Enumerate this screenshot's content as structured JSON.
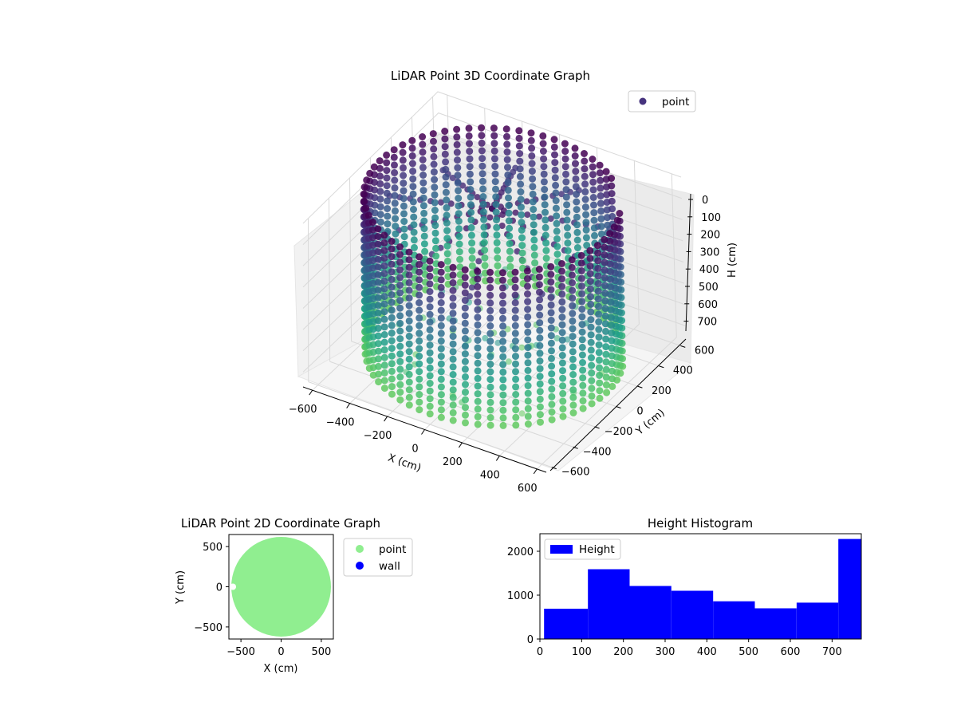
{
  "colors": {
    "viridis_dark": "#440154",
    "viridis_purple": "#46337e",
    "viridis_blue": "#31688e",
    "viridis_teal": "#21918c",
    "viridis_green": "#35b779",
    "viridis_light": "#6ece58",
    "lightgreen": "#90ee90",
    "wall_blue": "#0000ff",
    "hist_blue": "#0000ff",
    "pane": "#f2f2f2",
    "grid": "#d8d8d8"
  },
  "chart_data": [
    {
      "id": "lidar-3d",
      "type": "scatter",
      "title": "LiDAR Point 3D Coordinate Graph",
      "xlabel": "X (cm)",
      "ylabel": "Y (cm)",
      "zlabel": "H (cm)",
      "xlim": [
        -650,
        650
      ],
      "ylim": [
        -650,
        650
      ],
      "zlim": [
        0,
        770
      ],
      "z_inverted": true,
      "x_ticks": [
        "−600",
        "−400",
        "−200",
        "0",
        "200",
        "400",
        "600"
      ],
      "y_ticks": [
        "−600",
        "−400",
        "−200",
        "0",
        "200",
        "400",
        "600"
      ],
      "z_ticks": [
        "0",
        "100",
        "200",
        "300",
        "400",
        "500",
        "600",
        "700"
      ],
      "legend": [
        {
          "name": "point",
          "color": "#46337e"
        }
      ],
      "legend_position": "upper right",
      "colormap": "viridis (by height)",
      "shape": "cylindrical wall of radius ~600 cm with vertical point columns from H 0 to ~720 cm, plus interior ceiling points radiating from the center",
      "grid": true
    },
    {
      "id": "lidar-2d",
      "type": "scatter",
      "title": "LiDAR Point 2D Coordinate Graph",
      "xlabel": "X (cm)",
      "ylabel": "Y (cm)",
      "xlim": [
        -650,
        650
      ],
      "ylim": [
        -650,
        650
      ],
      "x_ticks": [
        "−500",
        "0",
        "500"
      ],
      "y_ticks": [
        "−500",
        "0",
        "500"
      ],
      "series": [
        {
          "name": "point",
          "color": "#90ee90",
          "shape": "filled disk of radius ~620 cm centered at origin"
        },
        {
          "name": "wall",
          "color": "#0000ff"
        }
      ],
      "legend_position": "outside right"
    },
    {
      "id": "height-histogram",
      "type": "bar",
      "title": "Height Histogram",
      "xlim": [
        0,
        770
      ],
      "ylim": [
        0,
        2400
      ],
      "x_ticks": [
        "0",
        "100",
        "200",
        "300",
        "400",
        "500",
        "600",
        "700"
      ],
      "y_ticks": [
        "0",
        "1000",
        "2000"
      ],
      "bins": [
        {
          "from": 10,
          "to": 115,
          "count": 690
        },
        {
          "from": 115,
          "to": 215,
          "count": 1590
        },
        {
          "from": 215,
          "to": 315,
          "count": 1210
        },
        {
          "from": 315,
          "to": 415,
          "count": 1100
        },
        {
          "from": 415,
          "to": 515,
          "count": 860
        },
        {
          "from": 515,
          "to": 615,
          "count": 700
        },
        {
          "from": 615,
          "to": 715,
          "count": 830
        },
        {
          "from": 715,
          "to": 770,
          "count": 2280
        }
      ],
      "series": [
        {
          "name": "Height",
          "color": "#0000ff"
        }
      ],
      "legend_position": "upper left"
    }
  ]
}
